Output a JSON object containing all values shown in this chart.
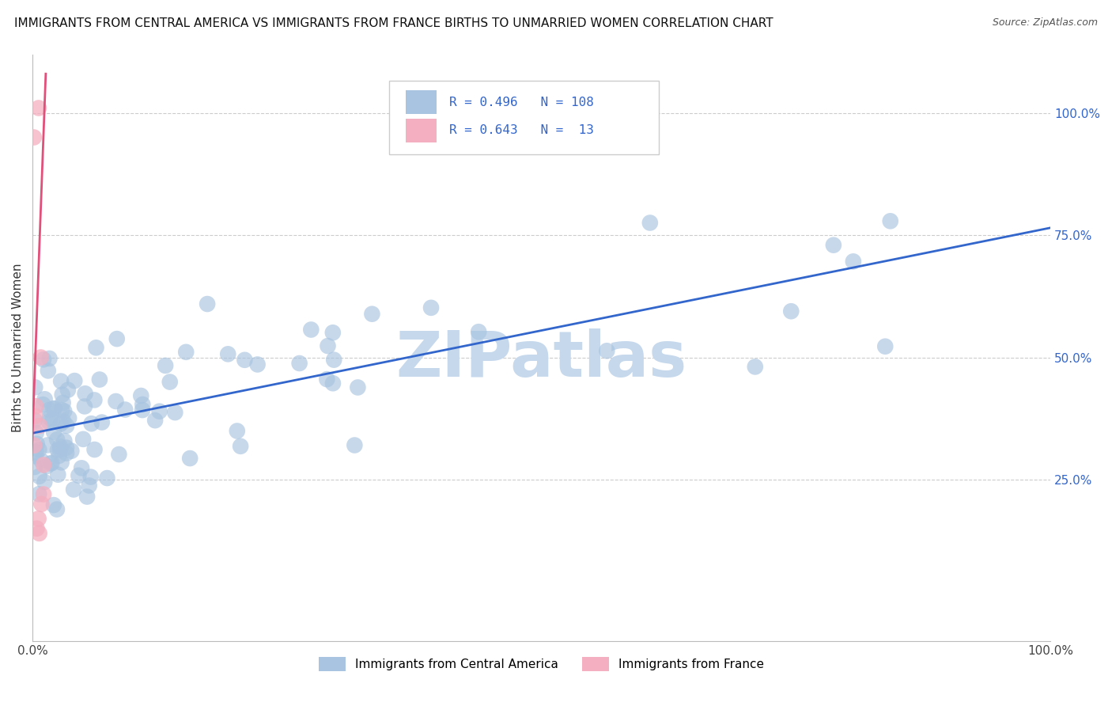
{
  "title": "IMMIGRANTS FROM CENTRAL AMERICA VS IMMIGRANTS FROM FRANCE BIRTHS TO UNMARRIED WOMEN CORRELATION CHART",
  "source": "Source: ZipAtlas.com",
  "ylabel": "Births to Unmarried Women",
  "legend_label_blue": "Immigrants from Central America",
  "legend_label_pink": "Immigrants from France",
  "R_blue": 0.496,
  "N_blue": 108,
  "R_pink": 0.643,
  "N_pink": 13,
  "xlim": [
    0.0,
    1.0
  ],
  "ylim": [
    -0.08,
    1.12
  ],
  "ytick_labels_right": [
    "25.0%",
    "50.0%",
    "75.0%",
    "100.0%"
  ],
  "ytick_positions_right": [
    0.25,
    0.5,
    0.75,
    1.0
  ],
  "blue_color": "#a8c4e0",
  "blue_line_color": "#3366cc",
  "pink_color": "#f4afc0",
  "pink_line_color": "#e0507a",
  "watermark": "ZIPatlas",
  "blue_trend_x": [
    0.0,
    1.0
  ],
  "blue_trend_y": [
    0.345,
    0.765
  ],
  "pink_trend_x": [
    -0.001,
    0.013
  ],
  "pink_trend_y": [
    0.29,
    1.08
  ],
  "grid_color": "#cccccc",
  "title_fontsize": 11,
  "watermark_color": "#c5d8ec",
  "watermark_fontsize": 58,
  "leg_R_color": "#3366cc",
  "leg_box_edge": "#cccccc"
}
